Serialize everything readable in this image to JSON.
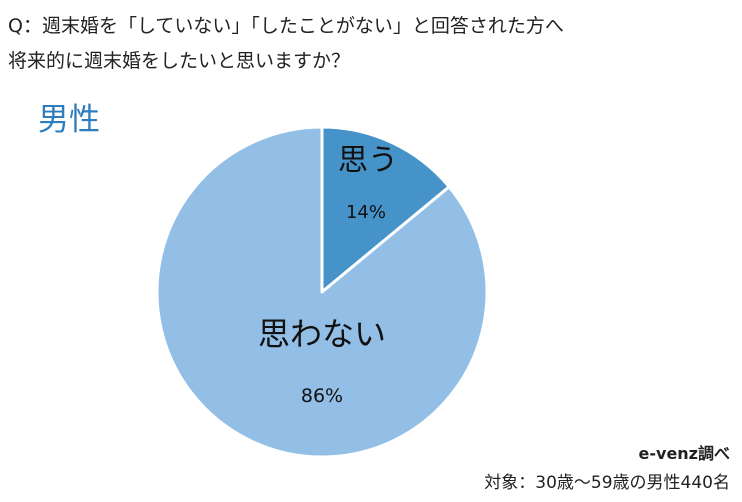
{
  "question": {
    "line1": "Q：週末婚を「していない」「したことがない」と回答された方へ",
    "line2": "将来的に週末婚をしたいと思いますか？"
  },
  "subgroup_label": "男性",
  "footer": {
    "source": "e-venz調べ",
    "sample": "対象：30歳〜59歳の男性440名"
  },
  "chart_data": {
    "type": "pie",
    "title": "男性",
    "slices": [
      {
        "label": "思う",
        "value": 14,
        "value_label": "14%",
        "color": "#4593c8"
      },
      {
        "label": "思わない",
        "value": 86,
        "value_label": "86%",
        "color": "#93bfe6"
      }
    ],
    "start": "12 o'clock",
    "direction": "clockwise",
    "label_color": "#111111",
    "subgroup_color": "#2e7dbf"
  }
}
